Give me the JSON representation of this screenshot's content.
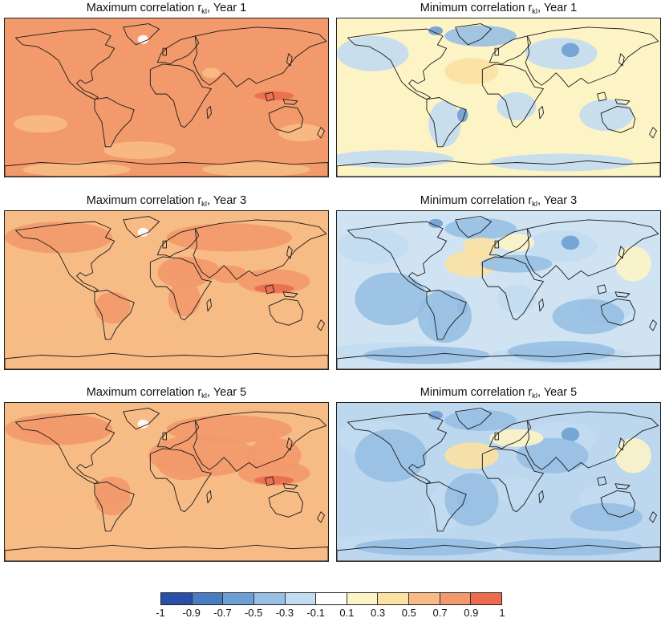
{
  "panels": [
    {
      "title_main": "Maximum correlation r",
      "title_sub": "kl",
      "title_tail": ", Year 1",
      "kind": "max",
      "base_color": "#f29a6b"
    },
    {
      "title_main": "Minimum correlation r",
      "title_sub": "kl",
      "title_tail": ", Year 1",
      "kind": "min",
      "base_color": "#fdf4c6"
    },
    {
      "title_main": "Maximum correlation r",
      "title_sub": "kl",
      "title_tail": ", Year 3",
      "kind": "max",
      "base_color": "#f7bb85"
    },
    {
      "title_main": "Minimum correlation r",
      "title_sub": "kl",
      "title_tail": ", Year 3",
      "kind": "min",
      "base_color": "#cfe3f2"
    },
    {
      "title_main": "Maximum correlation r",
      "title_sub": "kl",
      "title_tail": ", Year 5",
      "kind": "max",
      "base_color": "#f7bb85"
    },
    {
      "title_main": "Minimum correlation r",
      "title_sub": "kl",
      "title_tail": ", Year 5",
      "kind": "min",
      "base_color": "#bcd7ee"
    }
  ],
  "colorbar": {
    "ticks": [
      "-1",
      "-0.9",
      "-0.7",
      "-0.5",
      "-0.3",
      "-0.1",
      "0.1",
      "0.3",
      "0.5",
      "0.7",
      "0.9",
      "1"
    ],
    "colors": [
      "#2a4fa6",
      "#4a7cc2",
      "#6e9fd3",
      "#97bfe3",
      "#c2dcf0",
      "#ffffff",
      "#fdf4c6",
      "#fbe1a2",
      "#f7bb85",
      "#f29a6b",
      "#ec6b4e"
    ]
  }
}
